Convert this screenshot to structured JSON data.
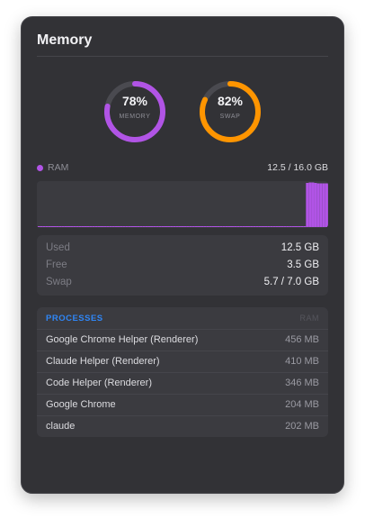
{
  "panel": {
    "title": "Memory"
  },
  "gauges": {
    "memory": {
      "percent_label": "78%",
      "label": "MEMORY",
      "value": 0.78,
      "color": "#b154e6"
    },
    "swap": {
      "percent_label": "82%",
      "label": "SWAP",
      "value": 0.82,
      "color": "#ff9500"
    }
  },
  "ram": {
    "label": "RAM",
    "usage": "12.5 / 16.0 GB",
    "color": "#b154e6",
    "history": [
      0.02,
      0.02,
      0.02,
      0.02,
      0.02,
      0.02,
      0.02,
      0.02,
      0.02,
      0.02,
      0.02,
      0.02,
      0.02,
      0.02,
      0.02,
      0.02,
      0.02,
      0.02,
      0.02,
      0.02,
      0.02,
      0.02,
      0.02,
      0.02,
      0.02,
      0.02,
      0.02,
      0.02,
      0.02,
      0.02,
      0.02,
      0.02,
      0.02,
      0.02,
      0.02,
      0.02,
      0.02,
      0.02,
      0.02,
      0.02,
      0.02,
      0.02,
      0.02,
      0.02,
      0.02,
      0.02,
      0.02,
      0.02,
      0.02,
      0.02,
      0.02,
      0.02,
      0.02,
      0.02,
      0.02,
      0.02,
      0.02,
      0.02,
      0.02,
      0.02,
      0.02,
      0.02,
      0.02,
      0.02,
      0.02,
      0.02,
      0.02,
      0.02,
      0.02,
      0.02,
      0.02,
      0.02,
      0.02,
      0.02,
      0.02,
      0.02,
      0.02,
      0.02,
      0.02,
      0.02,
      0.02,
      0.02,
      0.02,
      0.02,
      0.02,
      0.02,
      0.02,
      0.02,
      0.02,
      0.02,
      0.02,
      0.02,
      0.02,
      0.02,
      0.02,
      0.02,
      0.02,
      0.98,
      0.99,
      0.99,
      0.98,
      0.97,
      0.97,
      0.97,
      0.97
    ]
  },
  "stats": [
    {
      "key": "Used",
      "value": "12.5 GB"
    },
    {
      "key": "Free",
      "value": "3.5 GB"
    },
    {
      "key": "Swap",
      "value": "5.7 / 7.0 GB"
    }
  ],
  "processes": {
    "header": "PROCESSES",
    "column": "RAM",
    "items": [
      {
        "name": "Google Chrome Helper (Renderer)",
        "ram": "456 MB"
      },
      {
        "name": "Claude Helper (Renderer)",
        "ram": "410 MB"
      },
      {
        "name": "Code Helper (Renderer)",
        "ram": "346 MB"
      },
      {
        "name": "Google Chrome",
        "ram": "204 MB"
      },
      {
        "name": "claude",
        "ram": "202 MB"
      }
    ]
  }
}
